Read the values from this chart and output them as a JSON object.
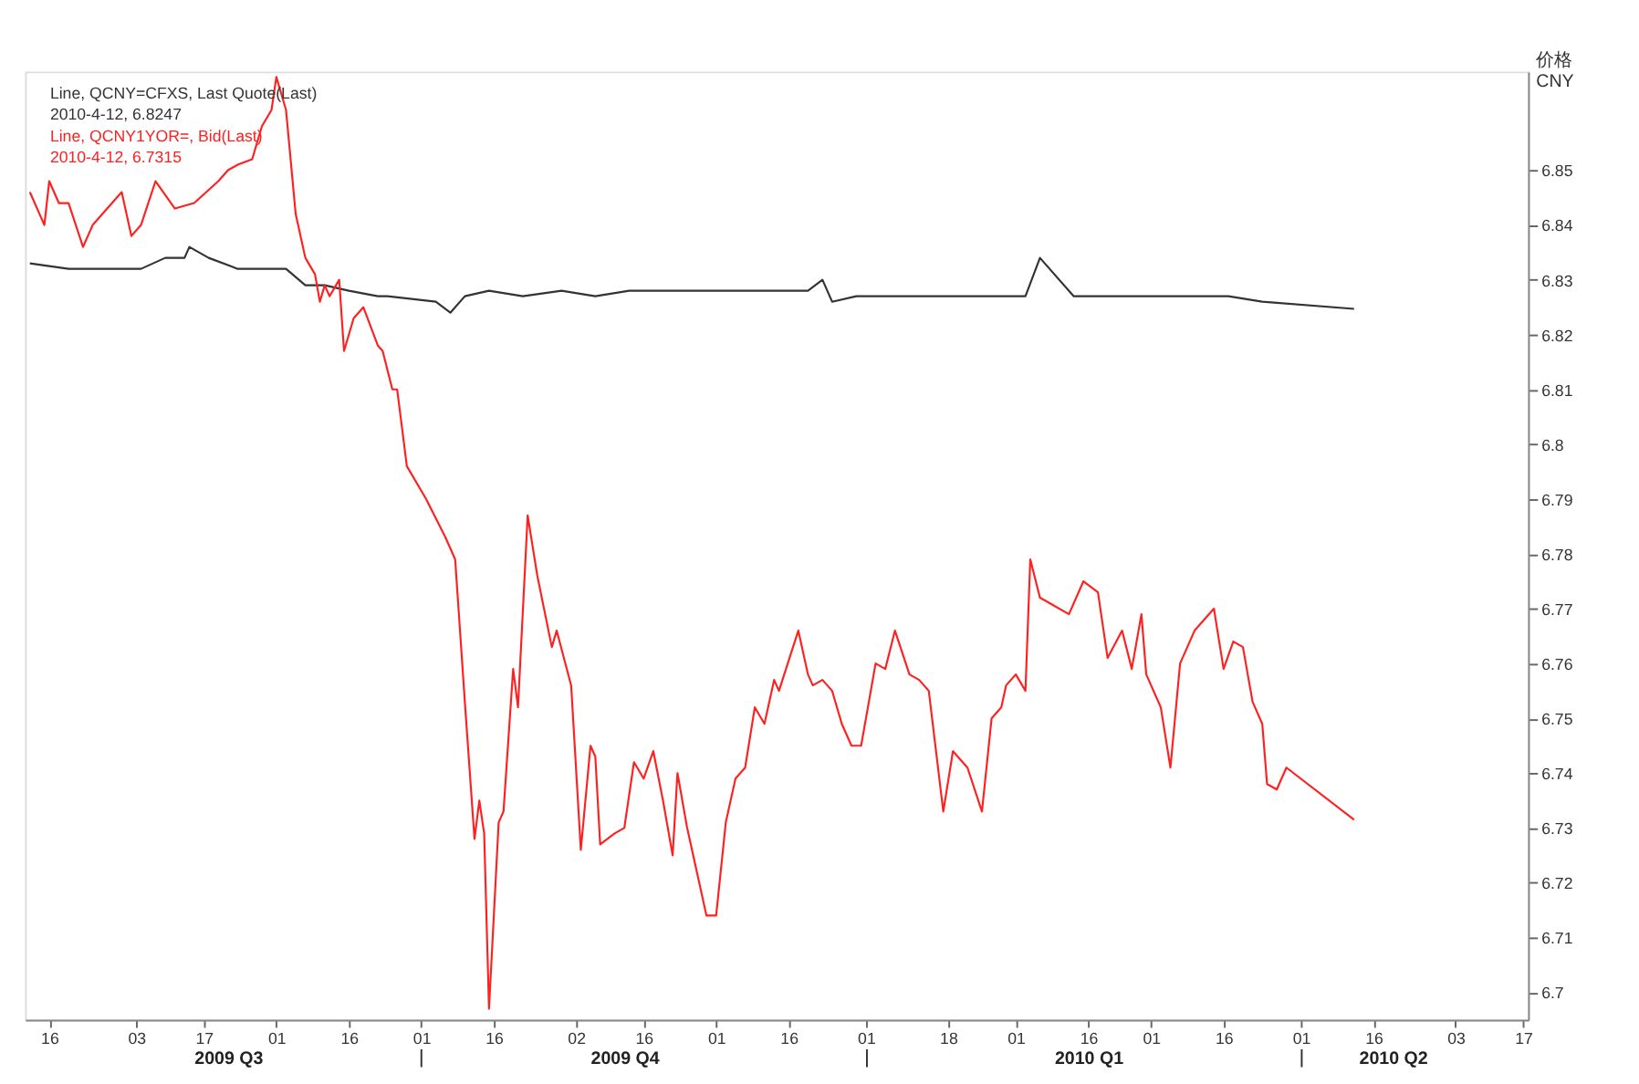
{
  "chart_data": {
    "type": "line",
    "ylabel": "价格 CNY",
    "legend": "top left",
    "line_style": "solid",
    "xlim": [
      "2009-07-11",
      "2010-05-18"
    ],
    "xticks": [
      {
        "value": "2009-07-16",
        "label": "16"
      },
      {
        "value": "2009-08-03",
        "label": "03"
      },
      {
        "value": "2009-08-17",
        "label": "17"
      },
      {
        "value": "2009-09-01",
        "label": "01"
      },
      {
        "value": "2009-09-16",
        "label": "16"
      },
      {
        "value": "2009-10-01",
        "label": "01"
      },
      {
        "value": "2009-10-16",
        "label": "16"
      },
      {
        "value": "2009-11-02",
        "label": "02"
      },
      {
        "value": "2009-11-16",
        "label": "16"
      },
      {
        "value": "2009-12-01",
        "label": "01"
      },
      {
        "value": "2009-12-16",
        "label": "16"
      },
      {
        "value": "2010-01-01",
        "label": "01"
      },
      {
        "value": "2010-01-18",
        "label": "18"
      },
      {
        "value": "2010-02-01",
        "label": "01"
      },
      {
        "value": "2010-02-16",
        "label": "16"
      },
      {
        "value": "2010-03-01",
        "label": "01"
      },
      {
        "value": "2010-03-16",
        "label": "16"
      },
      {
        "value": "2010-04-01",
        "label": "01"
      },
      {
        "value": "2010-04-16",
        "label": "16"
      },
      {
        "value": "2010-05-03",
        "label": "03"
      },
      {
        "value": "2010-05-17",
        "label": "17"
      }
    ],
    "x2lim": [
      "2009-07-11",
      "2010-05-18"
    ],
    "x2ticks": [
      {
        "value": "2009-08-22",
        "label": "2009 Q3"
      },
      {
        "value": "2009-10-01",
        "label": null
      },
      {
        "value": "2009-11-12",
        "label": "2009 Q4"
      },
      {
        "value": "2010-01-01",
        "label": null
      },
      {
        "value": "2010-02-16",
        "label": "2010 Q1"
      },
      {
        "value": "2010-04-01",
        "label": null
      },
      {
        "value": "2010-04-20",
        "label": "2010 Q2"
      }
    ],
    "ylim": [
      6.695,
      6.868
    ],
    "yticks": [
      6.85,
      6.84,
      6.83,
      6.82,
      6.81,
      {
        "value": 6.8,
        "label": "6.8"
      },
      6.79,
      6.78,
      6.77,
      6.76,
      6.75,
      6.74,
      6.73,
      6.72,
      6.71,
      {
        "value": 6.7,
        "label": "6.7"
      }
    ],
    "annotations": [
      "2010-4-12, 6.8247",
      "2010-4-12, 6.7315"
    ],
    "series": [
      {
        "name": "Line, QCNY=CFXS, Last Quote(Last)",
        "color": "#333333",
        "x": [
          "2009-07-12",
          "2009-07-20",
          "2009-07-27",
          "2009-08-04",
          "2009-08-09",
          "2009-08-13",
          "2009-08-14",
          "2009-08-18",
          "2009-08-24",
          "2009-08-29",
          "2009-09-03",
          "2009-09-07",
          "2009-09-11",
          "2009-09-16",
          "2009-09-22",
          "2009-09-24",
          "2009-10-04",
          "2009-10-07",
          "2009-10-10",
          "2009-10-15",
          "2009-10-22",
          "2009-10-30",
          "2009-11-06",
          "2009-11-13",
          "2009-11-20",
          "2009-12-01",
          "2009-12-05",
          "2009-12-12",
          "2009-12-20",
          "2009-12-23",
          "2009-12-25",
          "2009-12-30",
          "2010-01-10",
          "2010-01-25",
          "2010-02-03",
          "2010-02-06",
          "2010-02-13",
          "2010-02-23",
          "2010-03-06",
          "2010-03-17",
          "2010-03-24",
          "2010-04-12"
        ],
        "values": [
          6.833,
          6.832,
          6.832,
          6.832,
          6.834,
          6.834,
          6.836,
          6.834,
          6.832,
          6.832,
          6.832,
          6.829,
          6.829,
          6.828,
          6.827,
          6.827,
          6.826,
          6.824,
          6.827,
          6.828,
          6.827,
          6.828,
          6.827,
          6.828,
          6.828,
          6.828,
          6.828,
          6.828,
          6.828,
          6.83,
          6.826,
          6.827,
          6.827,
          6.827,
          6.827,
          6.834,
          6.827,
          6.827,
          6.827,
          6.827,
          6.826,
          6.8247
        ]
      },
      {
        "name": "Line, QCNY1YOR=, Bid(Last)",
        "color": "#ff2020",
        "x": [
          "2009-07-12",
          "2009-07-15",
          "2009-07-16",
          "2009-07-18",
          "2009-07-20",
          "2009-07-23",
          "2009-07-25",
          "2009-07-29",
          "2009-07-31",
          "2009-08-02",
          "2009-08-04",
          "2009-08-07",
          "2009-08-11",
          "2009-08-15",
          "2009-08-20",
          "2009-08-22",
          "2009-08-24",
          "2009-08-27",
          "2009-08-29",
          "2009-08-31",
          "2009-09-01",
          "2009-09-03",
          "2009-09-05",
          "2009-09-07",
          "2009-09-09",
          "2009-09-10",
          "2009-09-11",
          "2009-09-12",
          "2009-09-14",
          "2009-09-15",
          "2009-09-17",
          "2009-09-19",
          "2009-09-22",
          "2009-09-23",
          "2009-09-25",
          "2009-09-26",
          "2009-09-28",
          "2009-10-02",
          "2009-10-06",
          "2009-10-08",
          "2009-10-10",
          "2009-10-12",
          "2009-10-13",
          "2009-10-14",
          "2009-10-15",
          "2009-10-17",
          "2009-10-18",
          "2009-10-20",
          "2009-10-21",
          "2009-10-23",
          "2009-10-25",
          "2009-10-28",
          "2009-10-29",
          "2009-11-01",
          "2009-11-03",
          "2009-11-05",
          "2009-11-06",
          "2009-11-07",
          "2009-11-10",
          "2009-11-12",
          "2009-11-14",
          "2009-11-16",
          "2009-11-18",
          "2009-11-20",
          "2009-11-22",
          "2009-11-23",
          "2009-11-25",
          "2009-11-29",
          "2009-12-01",
          "2009-12-03",
          "2009-12-05",
          "2009-12-07",
          "2009-12-09",
          "2009-12-11",
          "2009-12-13",
          "2009-12-14",
          "2009-12-18",
          "2009-12-20",
          "2009-12-21",
          "2009-12-23",
          "2009-12-25",
          "2009-12-27",
          "2009-12-29",
          "2009-12-31",
          "2010-01-03",
          "2010-01-05",
          "2010-01-07",
          "2010-01-10",
          "2010-01-12",
          "2010-01-14",
          "2010-01-17",
          "2010-01-19",
          "2010-01-22",
          "2010-01-25",
          "2010-01-27",
          "2010-01-29",
          "2010-01-30",
          "2010-02-01",
          "2010-02-03",
          "2010-02-04",
          "2010-02-06",
          "2010-02-08",
          "2010-02-12",
          "2010-02-15",
          "2010-02-18",
          "2010-02-20",
          "2010-02-23",
          "2010-02-25",
          "2010-02-27",
          "2010-02-28",
          "2010-03-03",
          "2010-03-05",
          "2010-03-07",
          "2010-03-10",
          "2010-03-12",
          "2010-03-14",
          "2010-03-16",
          "2010-03-18",
          "2010-03-20",
          "2010-03-22",
          "2010-03-24",
          "2010-03-25",
          "2010-03-27",
          "2010-03-29",
          "2010-04-12"
        ],
        "values": [
          6.846,
          6.84,
          6.848,
          6.844,
          6.844,
          6.836,
          6.84,
          6.844,
          6.846,
          6.838,
          6.84,
          6.848,
          6.843,
          6.844,
          6.848,
          6.85,
          6.851,
          6.852,
          6.858,
          6.861,
          6.867,
          6.861,
          6.842,
          6.834,
          6.831,
          6.826,
          6.829,
          6.827,
          6.83,
          6.817,
          6.823,
          6.825,
          6.818,
          6.817,
          6.81,
          6.81,
          6.796,
          6.79,
          6.783,
          6.779,
          6.753,
          6.728,
          6.735,
          6.729,
          6.697,
          6.731,
          6.733,
          6.759,
          6.752,
          6.787,
          6.776,
          6.763,
          6.766,
          6.756,
          6.726,
          6.745,
          6.743,
          6.727,
          6.729,
          6.73,
          6.742,
          6.739,
          6.744,
          6.735,
          6.725,
          6.74,
          6.73,
          6.714,
          6.714,
          6.731,
          6.739,
          6.741,
          6.752,
          6.749,
          6.757,
          6.755,
          6.766,
          6.758,
          6.756,
          6.757,
          6.755,
          6.749,
          6.745,
          6.745,
          6.76,
          6.759,
          6.766,
          6.758,
          6.757,
          6.755,
          6.733,
          6.744,
          6.741,
          6.733,
          6.75,
          6.752,
          6.756,
          6.758,
          6.755,
          6.779,
          6.772,
          6.771,
          6.769,
          6.775,
          6.773,
          6.761,
          6.766,
          6.759,
          6.769,
          6.758,
          6.752,
          6.741,
          6.76,
          6.766,
          6.768,
          6.77,
          6.759,
          6.764,
          6.763,
          6.753,
          6.749,
          6.738,
          6.737,
          6.741,
          6.7315
        ]
      }
    ]
  }
}
